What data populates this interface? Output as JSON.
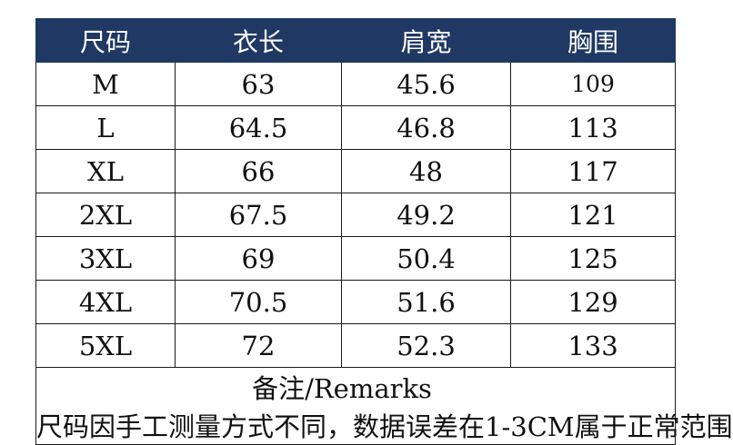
{
  "headers": [
    "尺码",
    "衣长",
    "肩宽",
    "胸围"
  ],
  "rows": [
    [
      "M",
      "63",
      "45.6",
      "109"
    ],
    [
      "L",
      "64.5",
      "46.8",
      "113"
    ],
    [
      "XL",
      "66",
      "48",
      "117"
    ],
    [
      "2XL",
      "67.5",
      "49.2",
      "121"
    ],
    [
      "3XL",
      "69",
      "50.4",
      "125"
    ],
    [
      "4XL",
      "70.5",
      "51.6",
      "129"
    ],
    [
      "5XL",
      "72",
      "52.3",
      "133"
    ]
  ],
  "note": {
    "label": "备注/Remarks",
    "text": "尺码因手工测量方式不同，数据误差在1-3CM属于正常范围"
  },
  "colors": {
    "header_bg": "#1f3864",
    "header_text": "#ffffff"
  }
}
